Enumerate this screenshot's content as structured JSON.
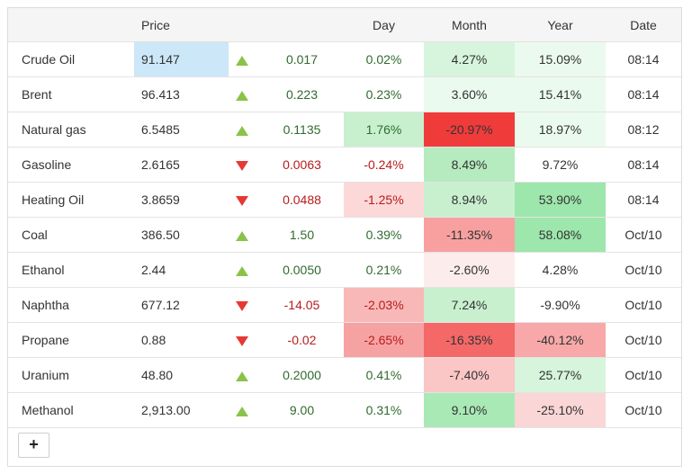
{
  "header": {
    "name": "",
    "price": "Price",
    "arrow": "",
    "change": "",
    "day": "Day",
    "month": "Month",
    "year": "Year",
    "date": "Date"
  },
  "colors": {
    "highlight_price": "#cce7f7",
    "up": "#8bc34a",
    "down": "#e53935"
  },
  "rows": [
    {
      "name": "Crude Oil",
      "price": "91.147",
      "direction": "up",
      "change": "0.017",
      "day": "0.02%",
      "month": "4.27%",
      "year": "15.09%",
      "date": "08:14",
      "price_bg": "#cce7f7",
      "day_bg": "",
      "month_bg": "#d6f5dc",
      "year_bg": "#ebfaee"
    },
    {
      "name": "Brent",
      "price": "96.413",
      "direction": "up",
      "change": "0.223",
      "day": "0.23%",
      "month": "3.60%",
      "year": "15.41%",
      "date": "08:14",
      "price_bg": "",
      "day_bg": "",
      "month_bg": "#ebfaee",
      "year_bg": "#ebfaee"
    },
    {
      "name": "Natural gas",
      "price": "6.5485",
      "direction": "up",
      "change": "0.1135",
      "day": "1.76%",
      "month": "-20.97%",
      "year": "18.97%",
      "date": "08:12",
      "price_bg": "",
      "day_bg": "#c8f0cf",
      "month_bg": "#f03b3b",
      "year_bg": "#ebfaee"
    },
    {
      "name": "Gasoline",
      "price": "2.6165",
      "direction": "down",
      "change": "0.0063",
      "day": "-0.24%",
      "month": "8.49%",
      "year": "9.72%",
      "date": "08:14",
      "price_bg": "",
      "day_bg": "",
      "month_bg": "#b5ebbf",
      "year_bg": ""
    },
    {
      "name": "Heating Oil",
      "price": "3.8659",
      "direction": "down",
      "change": "0.0488",
      "day": "-1.25%",
      "month": "8.94%",
      "year": "53.90%",
      "date": "08:14",
      "price_bg": "",
      "day_bg": "#fdd8d8",
      "month_bg": "#c8f0cf",
      "year_bg": "#9de6ac"
    },
    {
      "name": "Coal",
      "price": "386.50",
      "direction": "up",
      "change": "1.50",
      "day": "0.39%",
      "month": "-11.35%",
      "year": "58.08%",
      "date": "Oct/10",
      "price_bg": "",
      "day_bg": "",
      "month_bg": "#f8a0a0",
      "year_bg": "#9de6ac"
    },
    {
      "name": "Ethanol",
      "price": "2.44",
      "direction": "up",
      "change": "0.0050",
      "day": "0.21%",
      "month": "-2.60%",
      "year": "4.28%",
      "date": "Oct/10",
      "price_bg": "",
      "day_bg": "",
      "month_bg": "#fdecec",
      "year_bg": ""
    },
    {
      "name": "Naphtha",
      "price": "677.12",
      "direction": "down",
      "change": "-14.05",
      "day": "-2.03%",
      "month": "7.24%",
      "year": "-9.90%",
      "date": "Oct/10",
      "price_bg": "",
      "day_bg": "#f9b8b8",
      "month_bg": "#c8f0cf",
      "year_bg": ""
    },
    {
      "name": "Propane",
      "price": "0.88",
      "direction": "down",
      "change": "-0.02",
      "day": "-2.65%",
      "month": "-16.35%",
      "year": "-40.12%",
      "date": "Oct/10",
      "price_bg": "",
      "day_bg": "#f7a2a2",
      "month_bg": "#f46868",
      "year_bg": "#f8a8a8"
    },
    {
      "name": "Uranium",
      "price": "48.80",
      "direction": "up",
      "change": "0.2000",
      "day": "0.41%",
      "month": "-7.40%",
      "year": "25.77%",
      "date": "Oct/10",
      "price_bg": "",
      "day_bg": "",
      "month_bg": "#fbc6c6",
      "year_bg": "#d6f5dc"
    },
    {
      "name": "Methanol",
      "price": "2,913.00",
      "direction": "up",
      "change": "9.00",
      "day": "0.31%",
      "month": "9.10%",
      "year": "-25.10%",
      "date": "Oct/10",
      "price_bg": "",
      "day_bg": "",
      "month_bg": "#a9e9b6",
      "year_bg": "#fbd6d6"
    }
  ],
  "footer": {
    "add_label": "+"
  }
}
